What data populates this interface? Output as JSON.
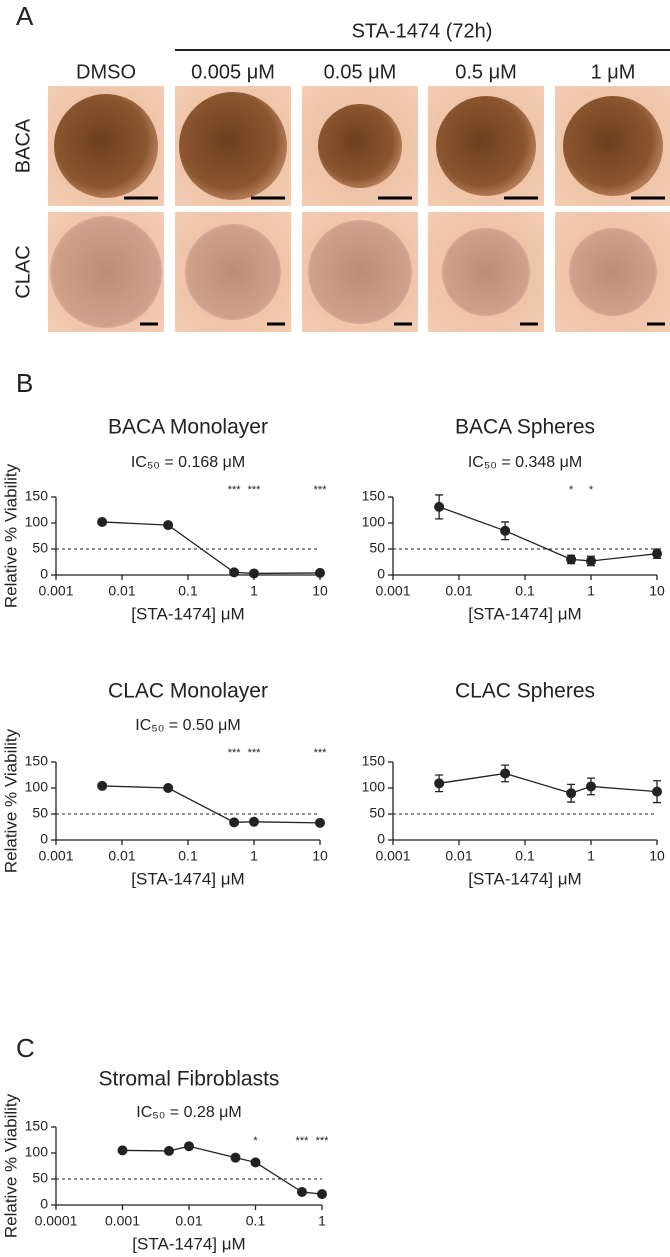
{
  "panel_a": {
    "label": "A",
    "treatment": "STA-1474 (72h)",
    "columns": [
      "DMSO",
      "0.005 μM",
      "0.05 μM",
      "0.5 μM",
      "1 μM"
    ],
    "rows": [
      "BACA",
      "CLAC"
    ]
  },
  "panel_b_label": "B",
  "panel_c_label": "C",
  "chart_data": [
    {
      "type": "line",
      "title": "BACA Monolayer",
      "annotation": "IC₅₀ = 0.168 μM",
      "xlabel": "[STA-1474] μM",
      "ylabel": "Relative % Viability",
      "x": [
        0.005,
        0.05,
        0.5,
        1,
        10
      ],
      "values": [
        102,
        96,
        5,
        3,
        4
      ],
      "errors": [
        2,
        2,
        1,
        1,
        1
      ],
      "significance": [
        {
          "x": 0.5,
          "label": "***"
        },
        {
          "x": 1,
          "label": "***"
        },
        {
          "x": 10,
          "label": "***"
        }
      ],
      "xlim": [
        0.001,
        10
      ],
      "xticks": [
        0.001,
        0.01,
        0.1,
        1,
        10
      ],
      "xscale": "log",
      "ylim": [
        0,
        150
      ],
      "yticks": [
        0,
        50,
        100,
        150
      ],
      "reference_line": 50,
      "color": "#222222"
    },
    {
      "type": "line",
      "title": "BACA Spheres",
      "annotation": "IC₅₀ = 0.348 μM",
      "xlabel": "[STA-1474] μM",
      "x": [
        0.005,
        0.05,
        0.5,
        1,
        10
      ],
      "values": [
        131,
        85,
        30,
        27,
        41
      ],
      "errors": [
        23,
        17,
        8,
        9,
        9
      ],
      "significance": [
        {
          "x": 0.5,
          "label": "*"
        },
        {
          "x": 1,
          "label": "*"
        }
      ],
      "xlim": [
        0.001,
        10
      ],
      "xticks": [
        0.001,
        0.01,
        0.1,
        1,
        10
      ],
      "xscale": "log",
      "ylim": [
        0,
        150
      ],
      "yticks": [
        0,
        50,
        100,
        150
      ],
      "reference_line": 50,
      "color": "#222222"
    },
    {
      "type": "line",
      "title": "CLAC Monolayer",
      "annotation": "IC₅₀ = 0.50 μM",
      "xlabel": "[STA-1474] μM",
      "ylabel": "Relative % Viability",
      "x": [
        0.005,
        0.05,
        0.5,
        1,
        10
      ],
      "values": [
        104,
        100,
        34,
        35,
        33
      ],
      "errors": [
        2,
        2,
        2,
        2,
        2
      ],
      "significance": [
        {
          "x": 0.5,
          "label": "***"
        },
        {
          "x": 1,
          "label": "***"
        },
        {
          "x": 10,
          "label": "***"
        }
      ],
      "xlim": [
        0.001,
        10
      ],
      "xticks": [
        0.001,
        0.01,
        0.1,
        1,
        10
      ],
      "xscale": "log",
      "ylim": [
        0,
        150
      ],
      "yticks": [
        0,
        50,
        100,
        150
      ],
      "reference_line": 50,
      "color": "#222222"
    },
    {
      "type": "line",
      "title": "CLAC Spheres",
      "xlabel": "[STA-1474] μM",
      "x": [
        0.005,
        0.05,
        0.5,
        1,
        10
      ],
      "values": [
        109,
        128,
        90,
        103,
        93
      ],
      "errors": [
        16,
        16,
        17,
        16,
        21
      ],
      "xlim": [
        0.001,
        10
      ],
      "xticks": [
        0.001,
        0.01,
        0.1,
        1,
        10
      ],
      "xscale": "log",
      "ylim": [
        0,
        150
      ],
      "yticks": [
        0,
        50,
        100,
        150
      ],
      "reference_line": 50,
      "color": "#222222"
    },
    {
      "type": "line",
      "title": "Stromal Fibroblasts",
      "annotation": "IC₅₀ = 0.28 μM",
      "xlabel": "[STA-1474] μM",
      "ylabel": "Relative % Viability",
      "x": [
        0.001,
        0.005,
        0.01,
        0.05,
        0.1,
        0.5,
        1
      ],
      "values": [
        105,
        104,
        113,
        91,
        82,
        25,
        21
      ],
      "errors": [
        2,
        2,
        5,
        2,
        2,
        2,
        2
      ],
      "significance": [
        {
          "x": 0.1,
          "label": "*"
        },
        {
          "x": 0.5,
          "label": "***"
        },
        {
          "x": 1,
          "label": "***"
        }
      ],
      "xlim": [
        0.0001,
        1
      ],
      "xticks": [
        0.0001,
        0.001,
        0.01,
        0.1,
        1
      ],
      "xscale": "log",
      "ylim": [
        0,
        150
      ],
      "yticks": [
        0,
        50,
        100,
        150
      ],
      "reference_line": 50,
      "color": "#222222"
    }
  ]
}
